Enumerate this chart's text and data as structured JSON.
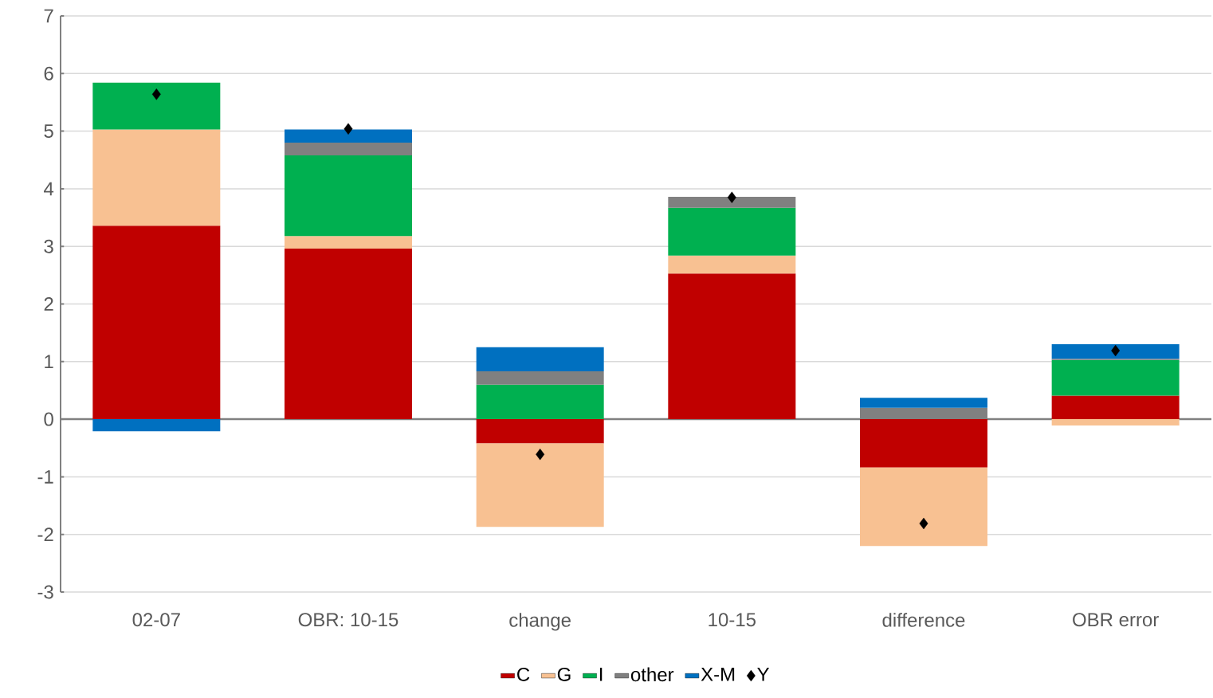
{
  "chart_data": {
    "type": "bar",
    "stacked": true,
    "categories": [
      "02-07",
      "OBR: 10-15",
      "change",
      "10-15",
      "difference",
      "OBR error"
    ],
    "series": [
      {
        "name": "C",
        "color": "#c00000",
        "values": [
          3.36,
          2.96,
          -0.42,
          2.53,
          -0.84,
          0.41
        ]
      },
      {
        "name": "G",
        "color": "#f8c192",
        "values": [
          1.67,
          0.22,
          -1.45,
          0.31,
          -1.36,
          -0.11
        ]
      },
      {
        "name": "I",
        "color": "#00b050",
        "values": [
          0.81,
          1.4,
          0.6,
          0.83,
          0,
          0.62
        ]
      },
      {
        "name": "other",
        "color": "#808080",
        "values": [
          0,
          0.22,
          0.23,
          0.19,
          0.2,
          0.02
        ]
      },
      {
        "name": "X-M",
        "color": "#0070c0",
        "values": [
          -0.21,
          0.23,
          0.42,
          0,
          0.17,
          0.25
        ]
      },
      {
        "name": "Y",
        "type": "scatter",
        "color": "#000000",
        "marker": "diamond",
        "x": [
          "02-07",
          "OBR: 10-15",
          "change",
          "10-15",
          "difference",
          "OBR error"
        ],
        "values": [
          5.64,
          5.04,
          -0.61,
          3.85,
          -1.81,
          1.19
        ]
      }
    ],
    "ylim": [
      -3,
      7
    ],
    "yticks": [
      -3,
      -2,
      -1,
      0,
      1,
      2,
      3,
      4,
      5,
      6,
      7
    ],
    "grid": "y",
    "legend": "bottom"
  }
}
